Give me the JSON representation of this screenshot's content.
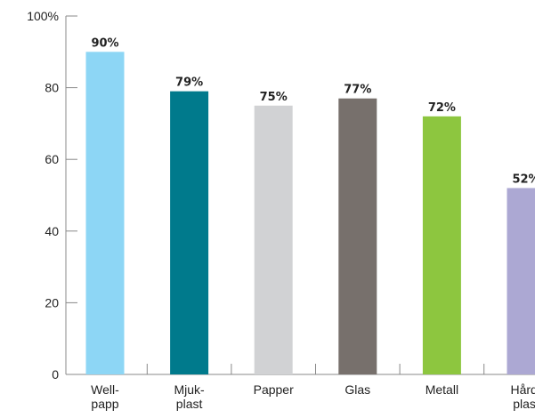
{
  "chart_data": {
    "type": "bar",
    "categories": [
      [
        "Well-",
        "papp"
      ],
      [
        "Mjuk-",
        "plast"
      ],
      [
        "Papper"
      ],
      [
        "Glas"
      ],
      [
        "Metall"
      ],
      [
        "Hård-",
        "plast"
      ]
    ],
    "values": [
      90,
      79,
      75,
      77,
      72,
      52
    ],
    "data_labels": [
      "90%",
      "79%",
      "75%",
      "77%",
      "72%",
      "52%"
    ],
    "colors": [
      "#8dd6f5",
      "#007a8c",
      "#d1d2d4",
      "#77706c",
      "#8dc63f",
      "#aca8d3"
    ],
    "y_ticks": [
      "0",
      "20",
      "40",
      "60",
      "80",
      "100%"
    ],
    "y_tick_values": [
      0,
      20,
      40,
      60,
      80,
      100
    ],
    "ylim": [
      0,
      100
    ],
    "title": "",
    "xlabel": "",
    "ylabel": "",
    "grid": false,
    "legend": "none"
  }
}
